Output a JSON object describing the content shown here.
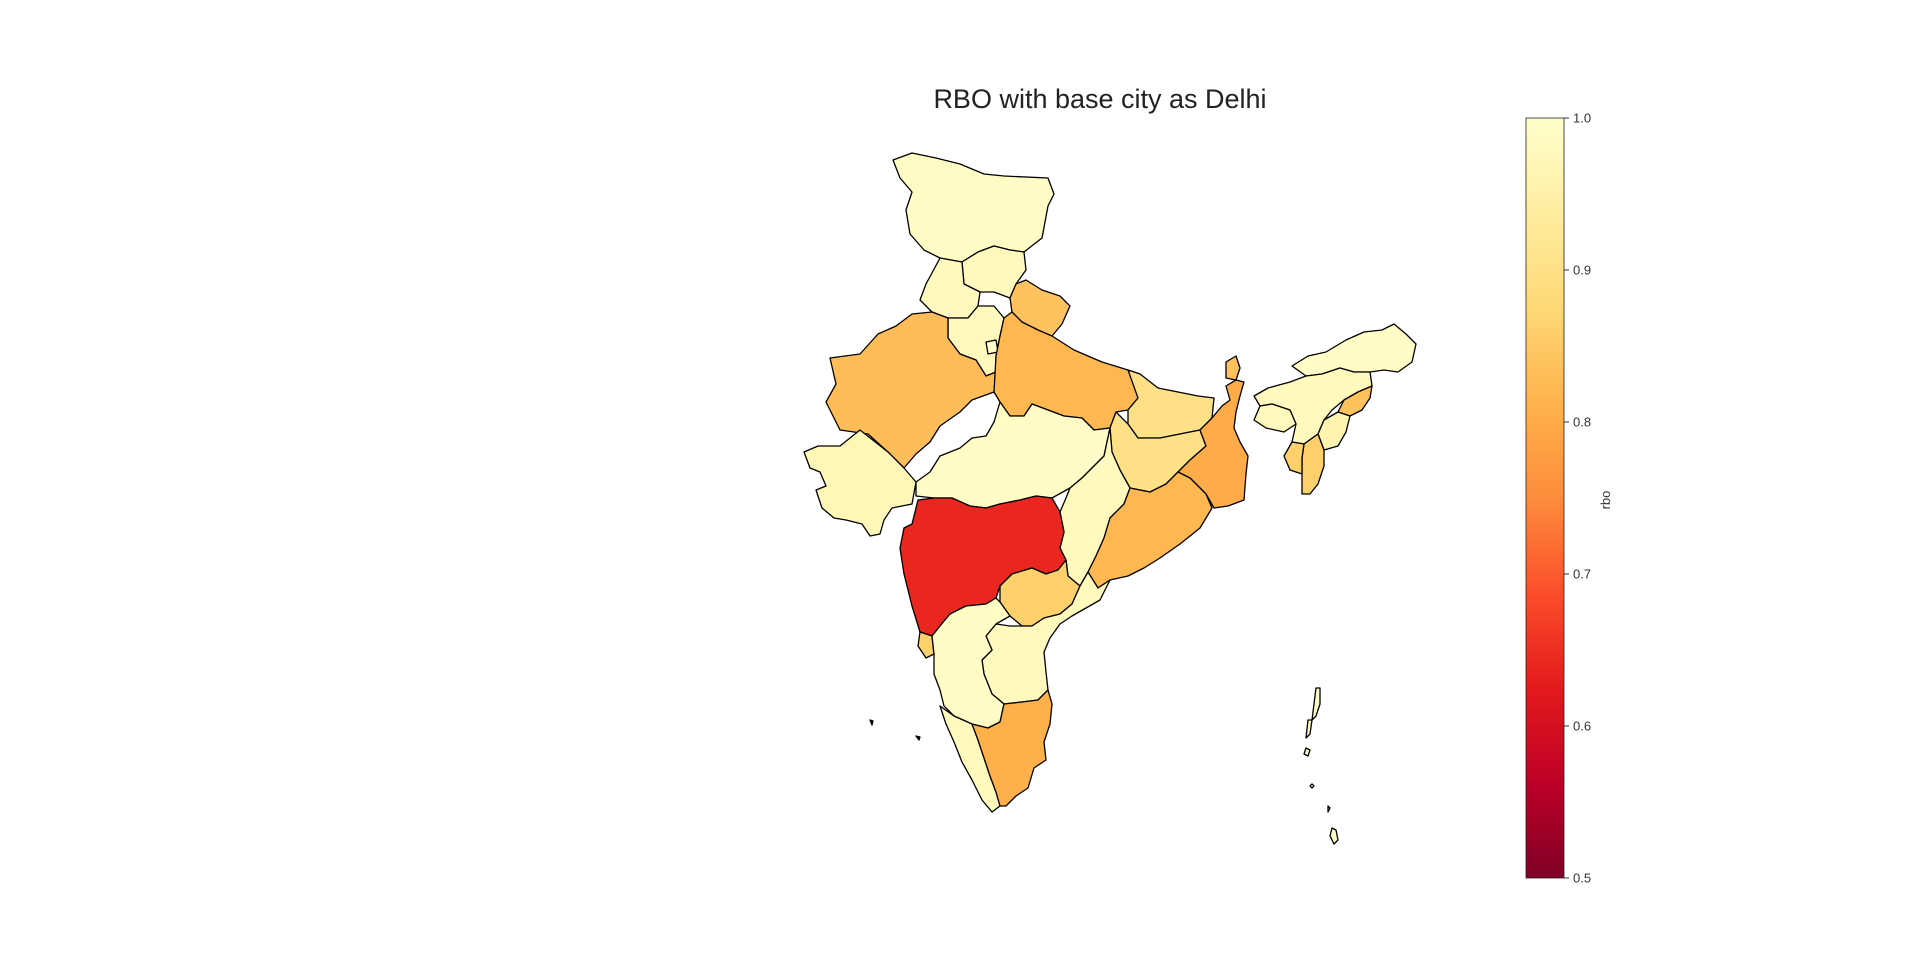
{
  "map": {
    "title": "RBO with base city as Delhi",
    "regions": [
      {
        "id": "jammu-kashmir",
        "value": 0.99
      },
      {
        "id": "himachal-pradesh",
        "value": 0.98
      },
      {
        "id": "punjab",
        "value": 0.98
      },
      {
        "id": "uttarakhand",
        "value": 0.84
      },
      {
        "id": "haryana",
        "value": 0.98
      },
      {
        "id": "delhi",
        "value": 1.0
      },
      {
        "id": "rajasthan",
        "value": 0.83
      },
      {
        "id": "uttar-pradesh",
        "value": 0.82
      },
      {
        "id": "gujarat",
        "value": 0.97
      },
      {
        "id": "madhya-pradesh",
        "value": 0.99
      },
      {
        "id": "bihar",
        "value": 0.9
      },
      {
        "id": "jharkhand",
        "value": 0.9
      },
      {
        "id": "west-bengal",
        "value": 0.8
      },
      {
        "id": "sikkim",
        "value": 0.84
      },
      {
        "id": "chhattisgarh",
        "value": 0.98
      },
      {
        "id": "odisha",
        "value": 0.82
      },
      {
        "id": "maharashtra",
        "value": 0.64
      },
      {
        "id": "telangana",
        "value": 0.86
      },
      {
        "id": "andhra-pradesh",
        "value": 0.98
      },
      {
        "id": "goa",
        "value": 0.86
      },
      {
        "id": "karnataka",
        "value": 0.99
      },
      {
        "id": "kerala",
        "value": 0.98
      },
      {
        "id": "tamil-nadu",
        "value": 0.81
      },
      {
        "id": "arunachal-pradesh",
        "value": 0.99
      },
      {
        "id": "assam",
        "value": 0.98
      },
      {
        "id": "meghalaya",
        "value": 0.98
      },
      {
        "id": "nagaland",
        "value": 0.84
      },
      {
        "id": "manipur",
        "value": 0.96
      },
      {
        "id": "mizoram",
        "value": 0.86
      },
      {
        "id": "tripura",
        "value": 0.86
      },
      {
        "id": "andaman-nicobar",
        "value": 0.99
      }
    ]
  },
  "colorbar": {
    "label": "rbo",
    "min": 0.5,
    "max": 1.0,
    "ticks": [
      "1.0",
      "0.9",
      "0.8",
      "0.7",
      "0.6",
      "0.5"
    ],
    "colormap": "YlOrRd",
    "stops": [
      "#800026",
      "#bd0026",
      "#e31a1c",
      "#fc4e2a",
      "#fd8d3c",
      "#feb24c",
      "#fed976",
      "#ffeda0",
      "#ffffcc"
    ]
  }
}
